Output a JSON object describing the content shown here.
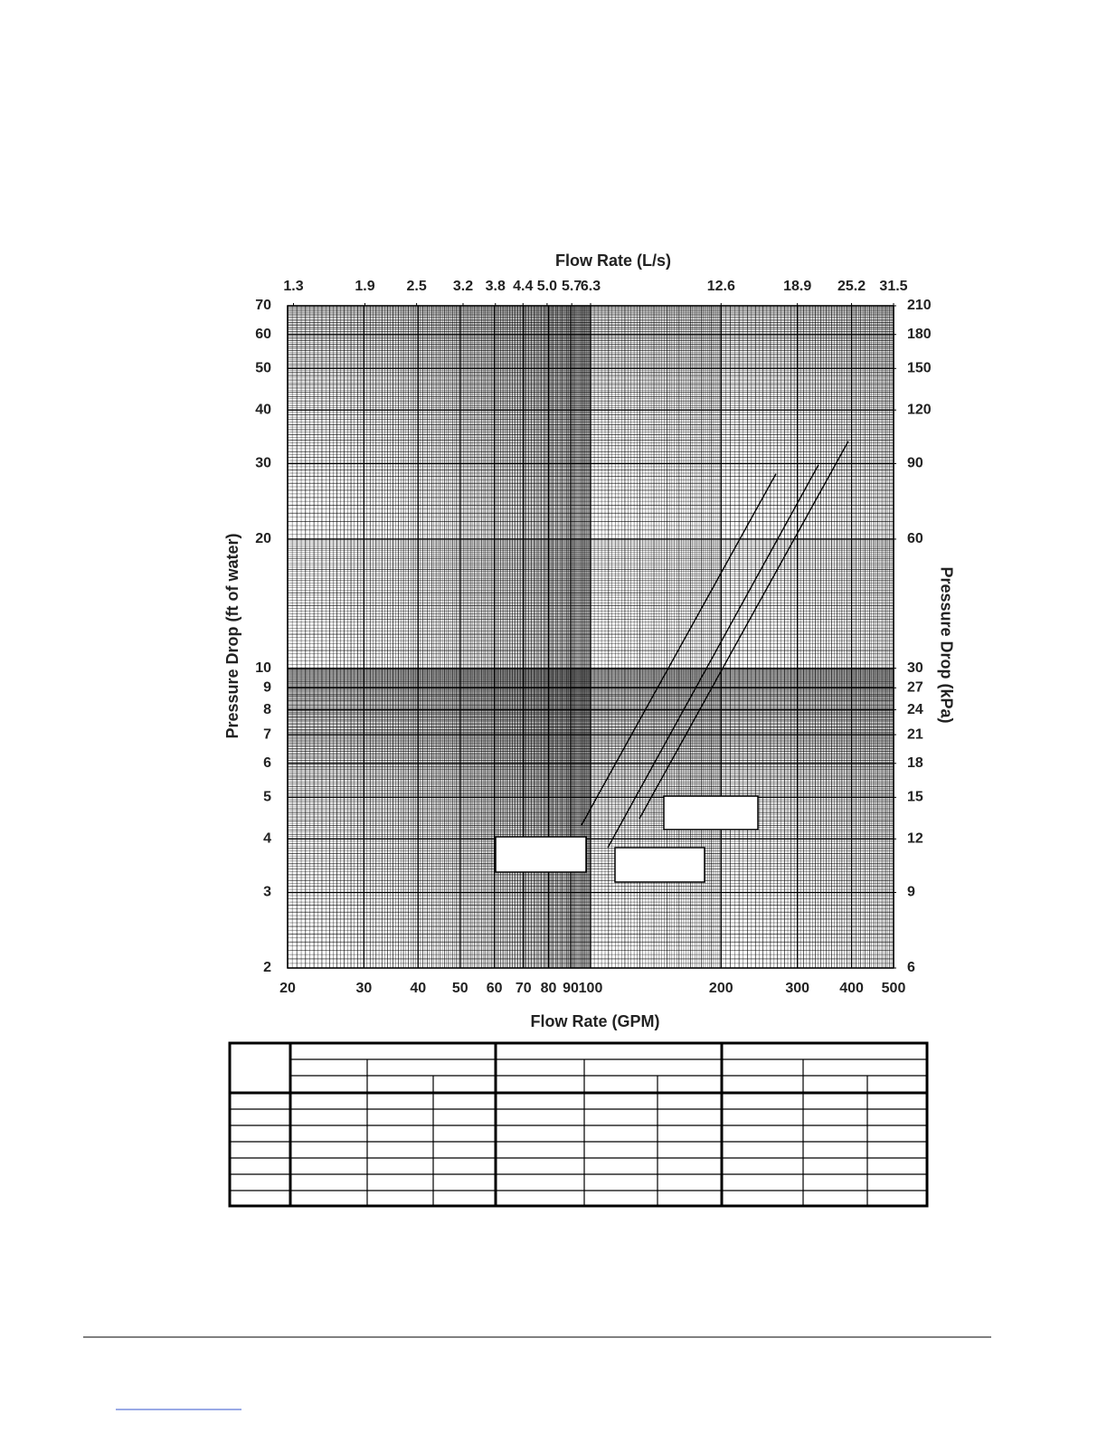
{
  "chart_data": {
    "type": "line",
    "log_scale": true,
    "grid": true,
    "xlabel": "Flow Rate (GPM)",
    "x2label": "Flow Rate (L/s)",
    "ylabel": "Pressure Drop (ft of water)",
    "y2label": "Pressure Drop (kPa)",
    "xlim": [
      20,
      500
    ],
    "xticks": [
      20,
      30,
      40,
      50,
      60,
      70,
      80,
      90,
      100,
      200,
      300,
      400,
      500
    ],
    "x2lim": [
      1.26,
      31.5
    ],
    "x2ticks": [
      1.3,
      1.9,
      2.5,
      3.2,
      3.8,
      4.4,
      {
        "value": 5,
        "label": "5.0"
      },
      5.7,
      6.3,
      12.6,
      18.9,
      25.2,
      31.5
    ],
    "ylim": [
      2,
      70
    ],
    "yticks": [
      2,
      3,
      4,
      5,
      6,
      7,
      8,
      9,
      10,
      20,
      30,
      40,
      50,
      60,
      70
    ],
    "y2lim": [
      6,
      210
    ],
    "y2ticks": [
      6,
      9,
      12,
      15,
      18,
      21,
      24,
      27,
      30,
      60,
      90,
      120,
      150,
      180,
      210
    ],
    "series": [
      {
        "color": "#000000",
        "x": [
          95.3,
          267.7
        ],
        "values": [
          4.31,
          28.4
        ]
      },
      {
        "color": "#000000",
        "x": [
          109.6,
          335.5
        ],
        "values": [
          3.82,
          29.8
        ]
      },
      {
        "color": "#000000",
        "x": [
          129.6,
          393
        ],
        "values": [
          4.46,
          33.8
        ]
      }
    ]
  }
}
